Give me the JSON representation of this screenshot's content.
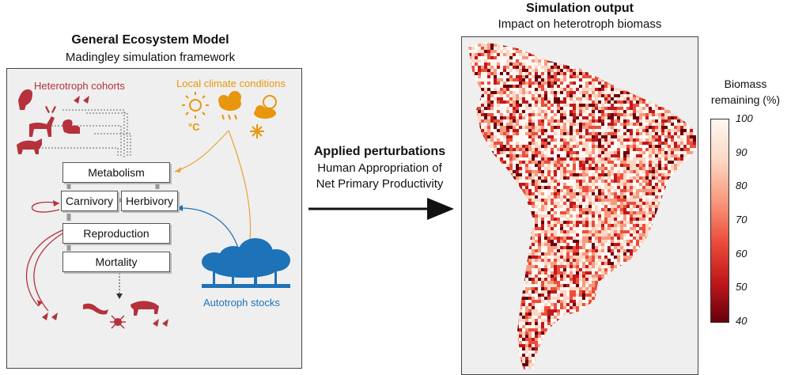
{
  "left": {
    "title": "General Ecosystem Model",
    "subtitle": "Madingley simulation framework",
    "heterotroph_label": "Heterotroph cohorts",
    "climate_label": "Local climate conditions",
    "celsius": "°C",
    "autotroph_label": "Autotroph stocks",
    "processes": {
      "metabolism": "Metabolism",
      "carnivory": "Carnivory",
      "herbivory": "Herbivory",
      "reproduction": "Reproduction",
      "mortality": "Mortality"
    },
    "colors": {
      "heterotroph": "#b5313b",
      "climate": "#e8960e",
      "autotroph": "#1d72b8"
    }
  },
  "middle": {
    "title": "Applied perturbations",
    "line1": "Human Appropriation of",
    "line2": "Net Primary Productivity"
  },
  "right": {
    "title": "Simulation output",
    "subtitle": "Impact on heterotroph biomass",
    "colorbar_title_1": "Biomass",
    "colorbar_title_2": "remaining (%)",
    "ticks": [
      "100",
      "90",
      "80",
      "70",
      "60",
      "50",
      "40"
    ],
    "colormap": [
      "#fff7f3",
      "#fcd7c4",
      "#f79a7e",
      "#ec4e3b",
      "#c1181c",
      "#67000d"
    ]
  }
}
